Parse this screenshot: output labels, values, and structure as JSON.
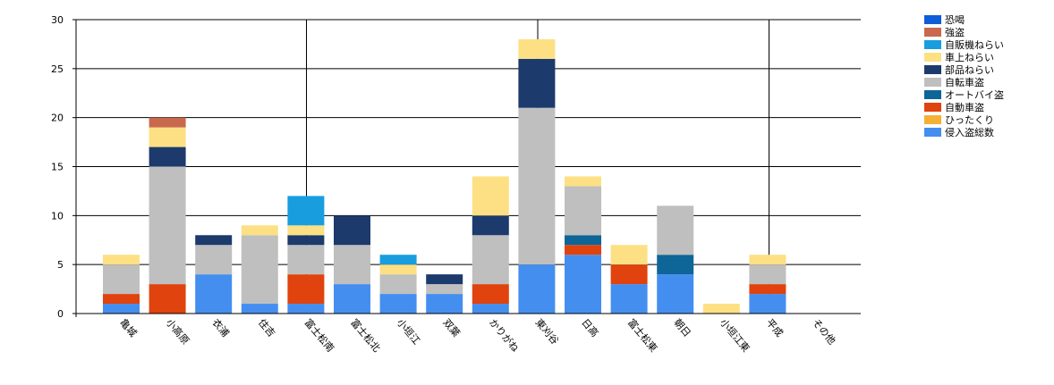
{
  "chart_data": {
    "type": "bar",
    "stacked": true,
    "categories": [
      "亀城",
      "小高原",
      "衣浦",
      "住吉",
      "富士松南",
      "富士松北",
      "小垣江",
      "双葉",
      "かりがね",
      "東刈谷",
      "日高",
      "富士松東",
      "朝日",
      "小垣江東",
      "平成",
      "その他"
    ],
    "ylim": [
      0,
      30
    ],
    "yticks": [
      0,
      5,
      10,
      15,
      20,
      25,
      30
    ],
    "grid": true,
    "legend_position": "right",
    "series": [
      {
        "name": "侵入盗総数",
        "color": "#448ef0",
        "values": [
          1,
          0,
          4,
          1,
          1,
          3,
          2,
          2,
          1,
          5,
          6,
          3,
          4,
          0,
          2,
          0
        ]
      },
      {
        "name": "ひったくり",
        "color": "#f4b136",
        "values": [
          0,
          0,
          0,
          0,
          0,
          0,
          0,
          0,
          0,
          0,
          0,
          0,
          0,
          0,
          0,
          0
        ]
      },
      {
        "name": "自動車盗",
        "color": "#e0430e",
        "values": [
          1,
          3,
          0,
          0,
          3,
          0,
          0,
          0,
          2,
          0,
          1,
          2,
          0,
          0,
          1,
          0
        ]
      },
      {
        "name": "オートバイ盗",
        "color": "#0e6597",
        "values": [
          0,
          0,
          0,
          0,
          0,
          0,
          0,
          0,
          0,
          0,
          1,
          0,
          2,
          0,
          0,
          0
        ]
      },
      {
        "name": "自転車盗",
        "color": "#bfbfbf",
        "values": [
          3,
          12,
          3,
          7,
          3,
          4,
          2,
          1,
          5,
          16,
          5,
          0,
          5,
          0,
          2,
          0
        ]
      },
      {
        "name": "部品ねらい",
        "color": "#1c3a6c",
        "values": [
          0,
          2,
          1,
          0,
          1,
          3,
          0,
          1,
          2,
          5,
          0,
          0,
          0,
          0,
          0,
          0
        ]
      },
      {
        "name": "車上ねらい",
        "color": "#fde083",
        "values": [
          1,
          2,
          0,
          1,
          1,
          0,
          1,
          0,
          4,
          2,
          1,
          2,
          0,
          1,
          1,
          0
        ]
      },
      {
        "name": "自販機ねらい",
        "color": "#189ede",
        "values": [
          0,
          0,
          0,
          0,
          3,
          0,
          1,
          0,
          0,
          0,
          0,
          0,
          0,
          0,
          0,
          0
        ]
      },
      {
        "name": "強盗",
        "color": "#c8694d",
        "values": [
          0,
          1,
          0,
          0,
          0,
          0,
          0,
          0,
          0,
          0,
          0,
          0,
          0,
          0,
          0,
          0
        ]
      },
      {
        "name": "恐喝",
        "color": "#0e5ed8",
        "values": [
          0,
          0,
          0,
          0,
          0,
          0,
          0,
          0,
          0,
          0,
          0,
          0,
          0,
          0,
          0,
          0
        ]
      }
    ]
  }
}
